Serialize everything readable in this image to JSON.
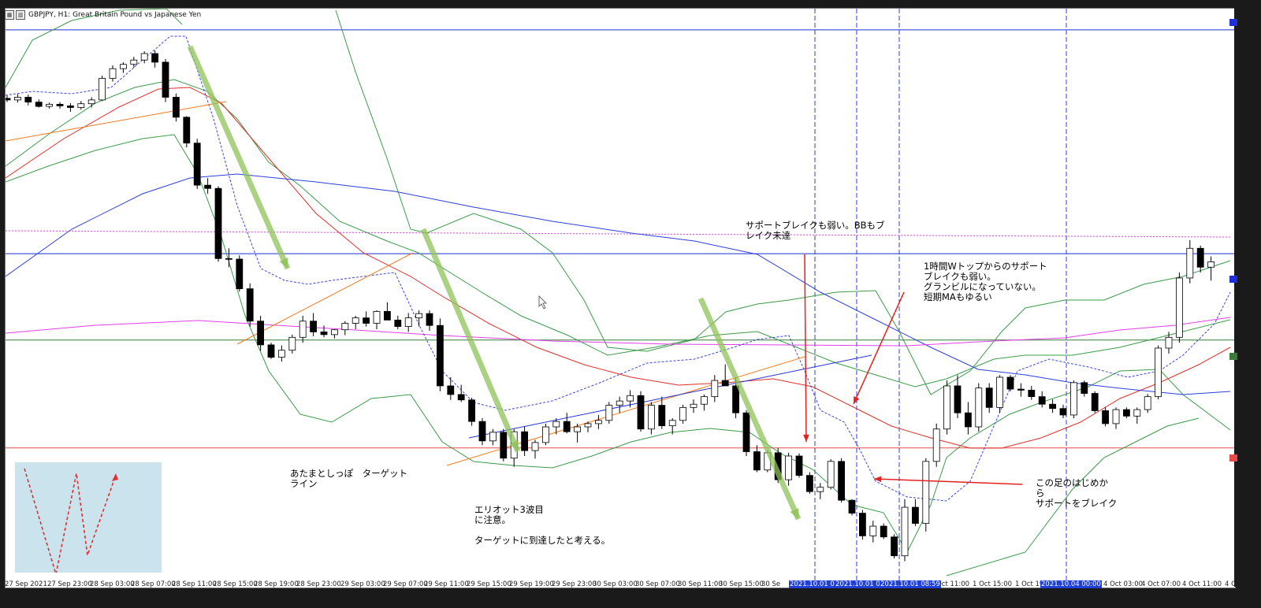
{
  "window": {
    "icon_name": "chart-window-icon",
    "title": "GBPJPY, H1:  Great Britain Pound vs Japanese Yen"
  },
  "annotations": {
    "support_break_weak": "サポートブレイクも弱い。BBもブ\nレイク未達",
    "double_top": "1時間Wトップからのサポート\nブレイクも弱い。\nグランビルになっていない。\n短期MAもゆるい",
    "head_tail_target": "あたまとしっぽ　ターゲット\nライン",
    "elliott_wave": "エリオット3波目\nに注意。\n\nターゲットに到達したと考える。",
    "this_candle": "この足のはじめか\nら\nサポートをブレイク"
  },
  "x_axis_labels": [
    "27 Sep 2021",
    "27 Sep 23:00",
    "28 Sep 03:00",
    "28 Sep 07:00",
    "28 Sep 11:00",
    "28 Sep 15:00",
    "28 Sep 19:00",
    "28 Sep 23:00",
    "29 Sep 03:00",
    "29 Sep 07:00",
    "29 Sep 11:00",
    "29 Sep 15:00",
    "29 Sep 19:00",
    "29 Sep 23:00",
    "30 Sep 03:00",
    "30 Sep 07:00",
    "30 Sep 11:00",
    "30 Sep 15:00",
    "30 Se",
    "1 Oct 11:00",
    "1 Oct 15:00",
    "1 Oct 19:",
    "4 Oct 03:00",
    "4 Oct 07:00",
    "4 Oct 11:00",
    "4 Oc"
  ],
  "x_axis_highlighted": [
    "2021.10.01 00:",
    "2021.10.01 04:",
    "2021.10.01 08:59",
    "2021.10.04 00:00"
  ],
  "colors": {
    "bull_body": "#ffffff",
    "bear_body": "#000000",
    "bb_band": "#3c9a4a",
    "ma_red": "#e0302a",
    "ma_blue": "#2b3fe0",
    "ma_magenta": "#e040e8",
    "ma_short_dashed": "#3a47d8",
    "trend_orange": "#f07a1e",
    "trend_blue": "#2233dd",
    "hline_blue": "#1f2fd6",
    "hline_red": "#e84a4a",
    "hline_green": "#3a7a3a",
    "arrow_green": "#8fc25a",
    "arrow_red": "#e52020",
    "w_box": "#cbe3ed",
    "vline": "#2b3fd6"
  },
  "chart_data": {
    "type": "candlestick",
    "symbol": "GBPJPY",
    "timeframe": "H1",
    "title": "GBPJPY, H1:  Great Britain Pound vs Japanese Yen",
    "ylabel": "",
    "xlabel": "",
    "ylim": [
      0,
      100
    ],
    "grid": false,
    "candles": [
      [
        86.3,
        86.8,
        85.6,
        86.0
      ],
      [
        86.0,
        87.1,
        85.5,
        86.5
      ],
      [
        86.5,
        87.0,
        85.0,
        85.6
      ],
      [
        85.6,
        86.1,
        84.6,
        84.8
      ],
      [
        84.8,
        85.5,
        84.4,
        85.2
      ],
      [
        85.2,
        85.6,
        84.4,
        84.9
      ],
      [
        84.9,
        85.4,
        83.8,
        84.6
      ],
      [
        84.6,
        85.8,
        84.2,
        85.3
      ],
      [
        85.3,
        86.5,
        84.6,
        86.0
      ],
      [
        86.0,
        90.5,
        85.8,
        90.0
      ],
      [
        90.0,
        92.4,
        89.4,
        91.8
      ],
      [
        91.8,
        93.0,
        91.0,
        92.6
      ],
      [
        92.6,
        94.0,
        92.0,
        93.4
      ],
      [
        93.4,
        95.0,
        92.8,
        94.6
      ],
      [
        94.6,
        95.2,
        92.0,
        93.0
      ],
      [
        93.0,
        93.6,
        85.6,
        86.5
      ],
      [
        86.5,
        87.2,
        82.0,
        82.8
      ],
      [
        82.8,
        83.0,
        77.2,
        78.0
      ],
      [
        78.0,
        78.8,
        69.5,
        70.2
      ],
      [
        70.2,
        71.5,
        68.6,
        69.6
      ],
      [
        69.6,
        70.0,
        56.0,
        56.6
      ],
      [
        56.6,
        58.5,
        55.0,
        56.5
      ],
      [
        56.5,
        57.2,
        50.5,
        51.0
      ],
      [
        51.0,
        52.0,
        44.0,
        45.0
      ],
      [
        45.0,
        46.0,
        39.5,
        40.6
      ],
      [
        40.6,
        41.0,
        38.0,
        38.3
      ],
      [
        38.3,
        40.5,
        37.5,
        39.6
      ],
      [
        39.6,
        42.5,
        39.0,
        42.0
      ],
      [
        42.0,
        46.0,
        41.0,
        45.0
      ],
      [
        45.0,
        46.5,
        42.2,
        43.0
      ],
      [
        43.0,
        44.2,
        42.0,
        42.5
      ],
      [
        42.5,
        43.5,
        41.8,
        43.4
      ],
      [
        43.4,
        45.0,
        42.4,
        44.6
      ],
      [
        44.6,
        46.0,
        43.5,
        45.6
      ],
      [
        45.6,
        46.8,
        44.0,
        44.6
      ],
      [
        44.6,
        47.0,
        43.5,
        46.8
      ],
      [
        46.8,
        48.5,
        45.5,
        45.2
      ],
      [
        45.2,
        46.0,
        43.5,
        44.0
      ],
      [
        44.0,
        46.5,
        43.0,
        45.6
      ],
      [
        45.6,
        47.0,
        44.0,
        46.4
      ],
      [
        46.4,
        47.0,
        43.2,
        44.2
      ],
      [
        44.2,
        45.5,
        32.0,
        33.0
      ],
      [
        33.0,
        34.6,
        30.4,
        31.4
      ],
      [
        31.4,
        33.2,
        30.0,
        30.4
      ],
      [
        30.4,
        30.8,
        25.6,
        26.4
      ],
      [
        26.4,
        27.0,
        22.0,
        22.8
      ],
      [
        22.8,
        25.0,
        22.0,
        24.4
      ],
      [
        24.4,
        25.0,
        19.0,
        19.6
      ],
      [
        19.6,
        25.0,
        18.0,
        24.5
      ],
      [
        24.5,
        25.5,
        20.0,
        21.0
      ],
      [
        21.0,
        23.0,
        19.5,
        22.5
      ],
      [
        22.5,
        26.0,
        22.0,
        25.4
      ],
      [
        25.4,
        27.0,
        24.0,
        26.4
      ],
      [
        26.4,
        28.0,
        24.2,
        24.5
      ],
      [
        24.5,
        26.0,
        22.5,
        25.4
      ],
      [
        25.4,
        26.4,
        24.4,
        26.0
      ],
      [
        26.0,
        27.6,
        25.0,
        26.6
      ],
      [
        26.6,
        30.0,
        26.0,
        29.4
      ],
      [
        29.4,
        31.0,
        28.0,
        30.2
      ],
      [
        30.2,
        32.2,
        29.0,
        31.2
      ],
      [
        31.2,
        32.0,
        24.5,
        25.0
      ],
      [
        25.0,
        30.0,
        24.0,
        29.4
      ],
      [
        29.4,
        31.0,
        25.0,
        25.6
      ],
      [
        25.6,
        27.0,
        24.0,
        26.6
      ],
      [
        26.6,
        29.5,
        26.0,
        29.0
      ],
      [
        29.0,
        30.5,
        28.0,
        29.6
      ],
      [
        29.6,
        31.4,
        28.4,
        31.0
      ],
      [
        31.0,
        35.0,
        30.0,
        34.0
      ],
      [
        34.0,
        37.0,
        33.0,
        33.0
      ],
      [
        33.0,
        34.5,
        27.0,
        28.0
      ],
      [
        28.0,
        28.5,
        20.0,
        20.8
      ],
      [
        20.8,
        22.0,
        17.0,
        17.4
      ],
      [
        17.4,
        21.0,
        17.0,
        20.6
      ],
      [
        20.6,
        21.5,
        15.0,
        15.6
      ],
      [
        15.6,
        20.6,
        14.5,
        20.0
      ],
      [
        20.0,
        20.5,
        16.0,
        16.4
      ],
      [
        16.4,
        17.0,
        13.0,
        13.4
      ],
      [
        13.4,
        15.0,
        12.0,
        14.2
      ],
      [
        14.2,
        19.4,
        13.8,
        19.0
      ],
      [
        19.0,
        19.6,
        11.4,
        11.8
      ],
      [
        11.8,
        12.0,
        9.0,
        9.4
      ],
      [
        9.4,
        10.0,
        4.5,
        5.2
      ],
      [
        5.2,
        8.0,
        4.0,
        7.0
      ],
      [
        7.0,
        7.5,
        4.6,
        5.0
      ],
      [
        5.0,
        5.5,
        1.0,
        1.5
      ],
      [
        1.5,
        12.0,
        0.5,
        10.5
      ],
      [
        10.5,
        12.0,
        7.0,
        7.5
      ],
      [
        7.5,
        19.6,
        6.0,
        19.0
      ],
      [
        19.0,
        26.0,
        18.0,
        25.0
      ],
      [
        25.0,
        34.0,
        24.0,
        33.0
      ],
      [
        33.0,
        35.0,
        27.0,
        28.0
      ],
      [
        28.0,
        30.0,
        24.0,
        25.4
      ],
      [
        25.4,
        33.5,
        24.5,
        32.6
      ],
      [
        32.6,
        33.5,
        28.0,
        29.0
      ],
      [
        29.0,
        35.0,
        28.0,
        34.6
      ],
      [
        34.6,
        35.0,
        32.0,
        32.4
      ],
      [
        32.4,
        33.5,
        31.0,
        32.2
      ],
      [
        32.2,
        33.0,
        30.4,
        31.0
      ],
      [
        31.0,
        32.0,
        29.0,
        29.6
      ],
      [
        29.6,
        30.5,
        28.0,
        28.8
      ],
      [
        28.8,
        29.5,
        27.0,
        27.6
      ],
      [
        27.6,
        34.0,
        27.0,
        33.6
      ],
      [
        33.6,
        34.0,
        31.0,
        31.6
      ],
      [
        31.6,
        32.0,
        28.0,
        28.4
      ],
      [
        28.4,
        29.0,
        25.5,
        26.0
      ],
      [
        26.0,
        29.0,
        25.0,
        28.6
      ],
      [
        28.6,
        29.0,
        27.0,
        27.4
      ],
      [
        27.4,
        29.0,
        26.0,
        28.6
      ],
      [
        28.6,
        31.5,
        28.0,
        31.0
      ],
      [
        31.0,
        40.5,
        30.5,
        40.0
      ],
      [
        40.0,
        43.0,
        39.0,
        42.0
      ],
      [
        42.0,
        54.0,
        41.0,
        53.0
      ],
      [
        53.0,
        60.0,
        52.0,
        58.5
      ],
      [
        58.5,
        59.0,
        54.0,
        55.0
      ],
      [
        55.0,
        57.0,
        52.5,
        56.0
      ]
    ],
    "horizontal_levels": [
      99.0,
      57.5,
      41.5,
      21.5
    ],
    "indicators": [
      "Bollinger Bands",
      "MA short (dashed)",
      "MA mid",
      "MA long",
      "MA very long"
    ]
  }
}
